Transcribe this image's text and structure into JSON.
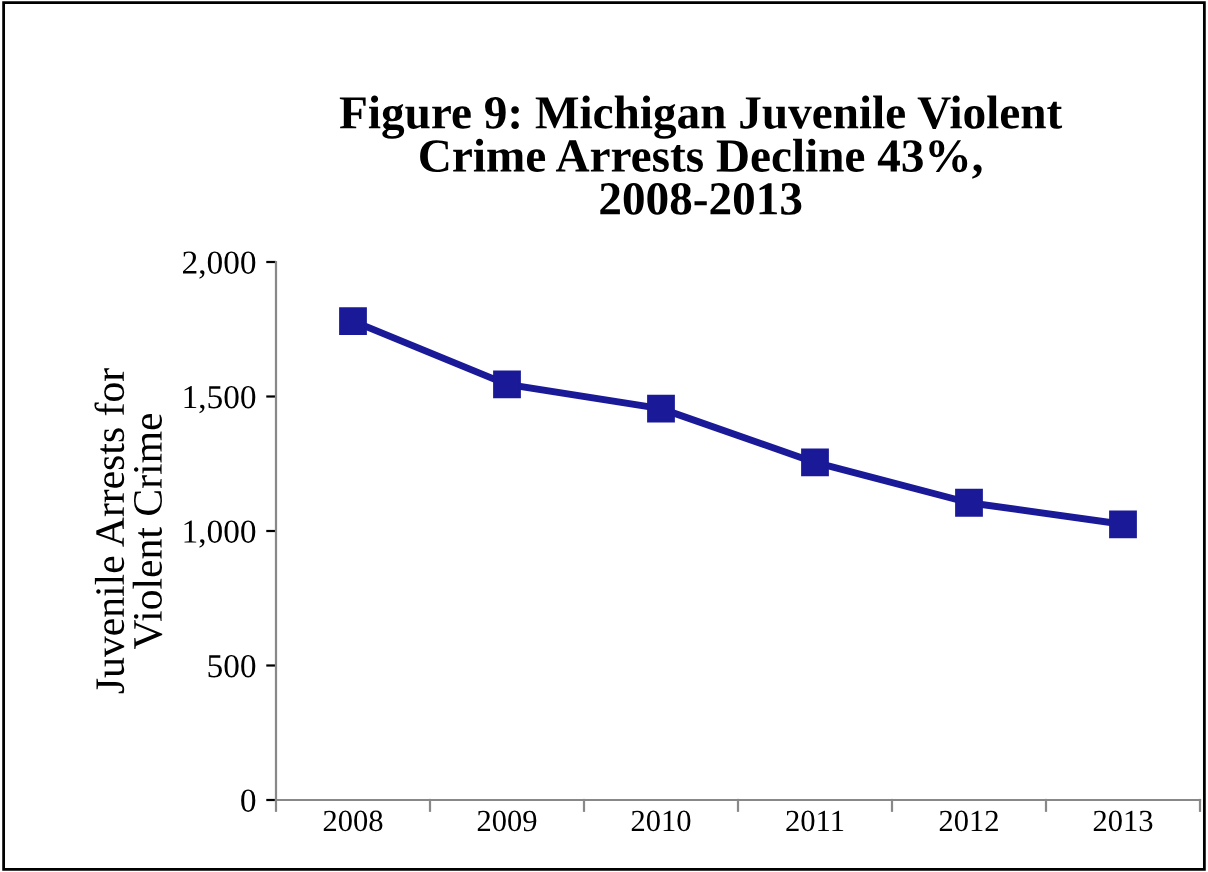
{
  "chart_data": {
    "type": "line",
    "title": "Figure 9: Michigan Juvenile Violent\nCrime Arrests Decline 43%,\n2008-2013",
    "ylabel": "Juvenile Arrests for\nViolent Crime",
    "categories": [
      "2008",
      "2009",
      "2010",
      "2011",
      "2012",
      "2013"
    ],
    "series": [
      {
        "color": "#1a1a99",
        "values": [
          1780,
          1545,
          1455,
          1255,
          1105,
          1025
        ]
      }
    ],
    "ylim": [
      0,
      2000
    ],
    "yticks": [
      {
        "value": 0,
        "label": "0"
      },
      {
        "value": 500,
        "label": "500"
      },
      {
        "value": 1000,
        "label": "1,000"
      },
      {
        "value": 1500,
        "label": "1,500"
      },
      {
        "value": 2000,
        "label": "2,000"
      }
    ],
    "marker": "square",
    "line_style": "solid",
    "grid": false,
    "legend": false
  }
}
